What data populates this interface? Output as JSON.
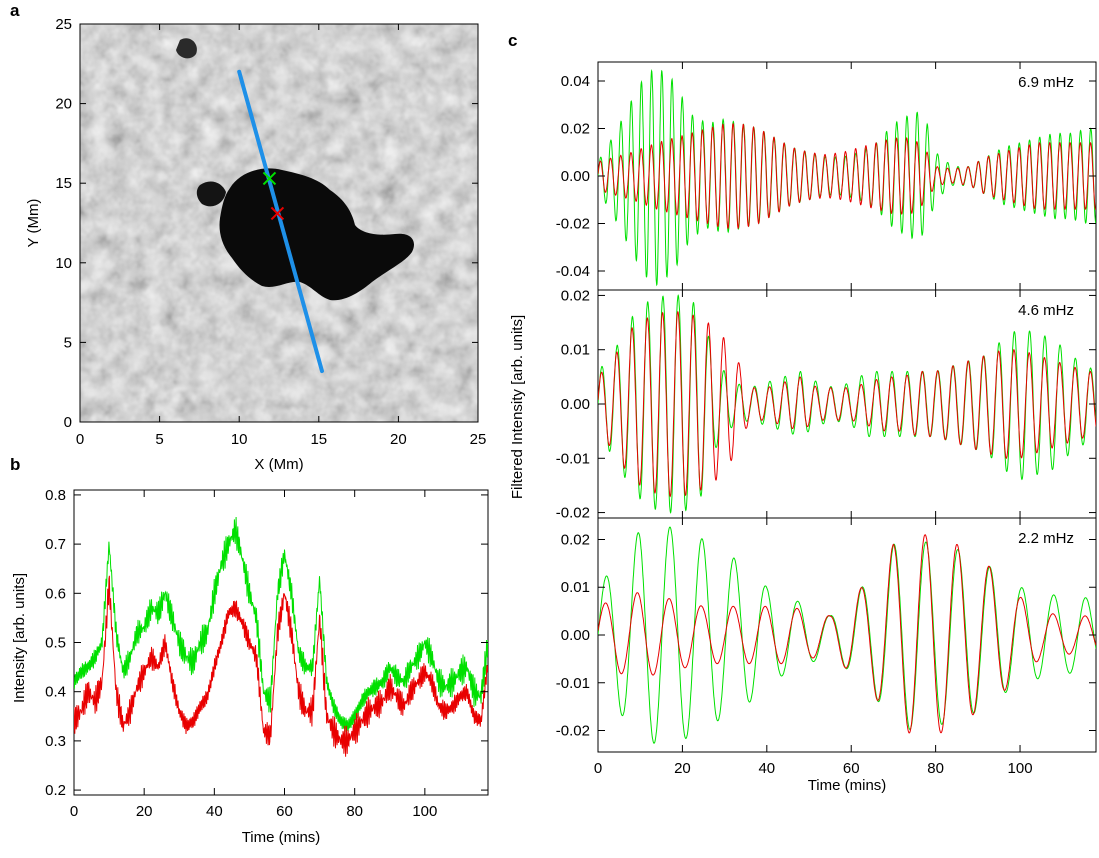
{
  "colors": {
    "green": "#00e000",
    "red": "#e80000",
    "slit": "#1e90e8",
    "axis": "#000000"
  },
  "chart_data": [
    {
      "panel": "a",
      "type": "heatmap",
      "xlabel": "X (Mm)",
      "ylabel": "Y (Mm)",
      "xlim": [
        0,
        25
      ],
      "ylim": [
        0,
        25
      ],
      "xticks": [
        "0",
        "5",
        "10",
        "15",
        "20",
        "25"
      ],
      "yticks": [
        "0",
        "5",
        "10",
        "15",
        "20",
        "25"
      ],
      "slit": {
        "x": [
          15.2,
          10.0
        ],
        "y": [
          3.2,
          22.0
        ]
      },
      "markers": [
        {
          "color": "green",
          "x": 11.9,
          "y": 15.3
        },
        {
          "color": "red",
          "x": 12.4,
          "y": 13.1
        }
      ]
    },
    {
      "panel": "b",
      "type": "line",
      "xlabel": "Time (mins)",
      "ylabel": "Intensity [arb. units]",
      "xlim": [
        0,
        118
      ],
      "ylim": [
        0.19,
        0.81
      ],
      "xticks": [
        "0",
        "20",
        "40",
        "60",
        "80",
        "100"
      ],
      "yticks": [
        "0.2",
        "0.3",
        "0.4",
        "0.5",
        "0.6",
        "0.7",
        "0.8"
      ],
      "series": [
        {
          "color": "green",
          "x": [
            0,
            2,
            4,
            6,
            8,
            10,
            12,
            14,
            16,
            18,
            20,
            22,
            24,
            26,
            28,
            30,
            32,
            34,
            36,
            38,
            40,
            42,
            44,
            46,
            48,
            50,
            52,
            54,
            56,
            58,
            60,
            62,
            64,
            66,
            68,
            70,
            72,
            74,
            76,
            78,
            80,
            82,
            84,
            86,
            88,
            90,
            92,
            94,
            96,
            98,
            100,
            102,
            104,
            106,
            108,
            110,
            112,
            114,
            116,
            118
          ],
          "y": [
            0.42,
            0.44,
            0.45,
            0.47,
            0.5,
            0.7,
            0.52,
            0.44,
            0.47,
            0.52,
            0.53,
            0.57,
            0.56,
            0.6,
            0.55,
            0.5,
            0.47,
            0.46,
            0.5,
            0.52,
            0.6,
            0.66,
            0.7,
            0.73,
            0.67,
            0.6,
            0.55,
            0.4,
            0.38,
            0.6,
            0.68,
            0.6,
            0.48,
            0.45,
            0.45,
            0.63,
            0.42,
            0.37,
            0.34,
            0.33,
            0.35,
            0.38,
            0.4,
            0.41,
            0.42,
            0.45,
            0.43,
            0.42,
            0.45,
            0.47,
            0.5,
            0.47,
            0.42,
            0.41,
            0.42,
            0.44,
            0.45,
            0.4,
            0.39,
            0.5
          ]
        },
        {
          "color": "red",
          "x": [
            0,
            2,
            4,
            6,
            8,
            10,
            12,
            14,
            16,
            18,
            20,
            22,
            24,
            26,
            28,
            30,
            32,
            34,
            36,
            38,
            40,
            42,
            44,
            46,
            48,
            50,
            52,
            54,
            56,
            58,
            60,
            62,
            64,
            66,
            68,
            70,
            72,
            74,
            76,
            78,
            80,
            82,
            84,
            86,
            88,
            90,
            92,
            94,
            96,
            98,
            100,
            102,
            104,
            106,
            108,
            110,
            112,
            114,
            116,
            118
          ],
          "y": [
            0.34,
            0.36,
            0.4,
            0.38,
            0.42,
            0.62,
            0.4,
            0.33,
            0.36,
            0.41,
            0.44,
            0.47,
            0.45,
            0.5,
            0.42,
            0.36,
            0.33,
            0.34,
            0.37,
            0.39,
            0.45,
            0.5,
            0.56,
            0.57,
            0.54,
            0.5,
            0.47,
            0.32,
            0.31,
            0.52,
            0.6,
            0.52,
            0.4,
            0.36,
            0.36,
            0.55,
            0.35,
            0.32,
            0.3,
            0.3,
            0.32,
            0.34,
            0.36,
            0.37,
            0.38,
            0.41,
            0.39,
            0.37,
            0.4,
            0.42,
            0.44,
            0.42,
            0.37,
            0.36,
            0.37,
            0.39,
            0.4,
            0.35,
            0.34,
            0.46
          ]
        }
      ]
    },
    {
      "panel": "c",
      "type": "line",
      "xlabel": "Time (mins)",
      "ylabel": "Filtered Intensity [arb. units]",
      "xlim": [
        0,
        118
      ],
      "xticks": [
        "0",
        "20",
        "40",
        "60",
        "80",
        "100"
      ],
      "subplots": [
        {
          "label": "6.9 mHz",
          "ylim": [
            -0.048,
            0.048
          ],
          "yticks": [
            "0.04",
            "0.02",
            "0.00",
            "-0.02",
            "-0.04"
          ],
          "period_min": 2.42,
          "env_t": [
            0,
            4,
            8,
            11,
            14,
            18,
            22,
            26,
            30,
            34,
            38,
            42,
            46,
            50,
            54,
            58,
            62,
            66,
            70,
            74,
            76,
            78,
            80,
            84,
            88,
            92,
            96,
            100,
            104,
            108,
            112,
            116,
            118
          ],
          "green_env": [
            0.006,
            0.018,
            0.032,
            0.042,
            0.046,
            0.04,
            0.026,
            0.022,
            0.024,
            0.022,
            0.02,
            0.016,
            0.012,
            0.01,
            0.008,
            0.008,
            0.01,
            0.014,
            0.022,
            0.026,
            0.027,
            0.022,
            0.01,
            0.004,
            0.004,
            0.008,
            0.012,
            0.014,
            0.016,
            0.018,
            0.018,
            0.02,
            0.02
          ],
          "red_env": [
            0.006,
            0.008,
            0.01,
            0.012,
            0.014,
            0.016,
            0.018,
            0.02,
            0.022,
            0.022,
            0.02,
            0.016,
            0.012,
            0.01,
            0.009,
            0.01,
            0.012,
            0.014,
            0.016,
            0.016,
            0.014,
            0.01,
            0.004,
            0.003,
            0.004,
            0.008,
            0.01,
            0.012,
            0.014,
            0.014,
            0.014,
            0.014,
            0.014
          ]
        },
        {
          "label": "4.6 mHz",
          "ylim": [
            -0.021,
            0.021
          ],
          "yticks": [
            "0.02",
            "0.01",
            "0.00",
            "-0.01",
            "-0.02"
          ],
          "period_min": 3.62,
          "env_t": [
            0,
            4,
            8,
            12,
            16,
            20,
            24,
            28,
            32,
            36,
            40,
            44,
            48,
            52,
            56,
            60,
            64,
            68,
            72,
            76,
            80,
            84,
            88,
            92,
            96,
            100,
            104,
            108,
            112,
            116,
            118
          ],
          "green_env": [
            0.006,
            0.01,
            0.016,
            0.019,
            0.02,
            0.02,
            0.018,
            0.008,
            0.004,
            0.003,
            0.004,
            0.005,
            0.006,
            0.004,
            0.003,
            0.004,
            0.006,
            0.006,
            0.006,
            0.006,
            0.006,
            0.007,
            0.008,
            0.009,
            0.012,
            0.014,
            0.013,
            0.012,
            0.009,
            0.007,
            0.006
          ],
          "red_env": [
            0.005,
            0.009,
            0.014,
            0.016,
            0.017,
            0.017,
            0.016,
            0.014,
            0.01,
            0.003,
            0.003,
            0.004,
            0.005,
            0.003,
            0.003,
            0.003,
            0.004,
            0.005,
            0.005,
            0.006,
            0.006,
            0.007,
            0.008,
            0.009,
            0.01,
            0.01,
            0.009,
            0.008,
            0.007,
            0.006,
            0.006
          ]
        },
        {
          "label": "2.2 mHz",
          "ylim": [
            -0.0245,
            0.0245
          ],
          "yticks": [
            "0.02",
            "0.01",
            "0.00",
            "-0.01",
            "-0.02"
          ],
          "period_min": 7.58,
          "env_t": [
            0,
            5,
            10,
            15,
            20,
            25,
            30,
            35,
            40,
            45,
            50,
            55,
            60,
            65,
            70,
            75,
            80,
            85,
            90,
            95,
            100,
            105,
            110,
            115,
            118
          ],
          "green_env": [
            0.01,
            0.016,
            0.022,
            0.023,
            0.022,
            0.02,
            0.017,
            0.015,
            0.01,
            0.008,
            0.006,
            0.004,
            0.008,
            0.012,
            0.019,
            0.02,
            0.019,
            0.018,
            0.016,
            0.013,
            0.01,
            0.009,
            0.008,
            0.008,
            0.007
          ],
          "red_env": [
            0.006,
            0.008,
            0.009,
            0.008,
            0.007,
            0.006,
            0.006,
            0.006,
            0.006,
            0.006,
            0.005,
            0.004,
            0.008,
            0.012,
            0.019,
            0.021,
            0.021,
            0.019,
            0.016,
            0.013,
            0.008,
            0.005,
            0.004,
            0.004,
            0.004
          ]
        }
      ]
    }
  ]
}
